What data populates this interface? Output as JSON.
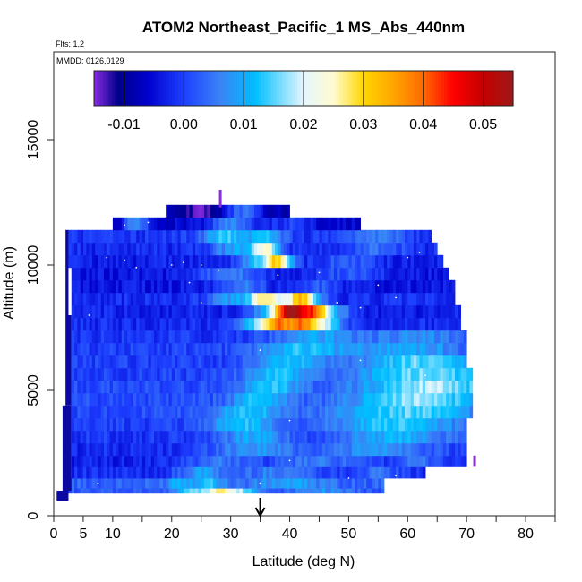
{
  "chart_data": {
    "type": "heatmap",
    "title": "ATOM2 Northeast_Pacific_1 MS_Abs_440nm",
    "flights_note": "Flts: 1,2",
    "dates_note": "MMDD: 0126,0129",
    "xlabel": "Latitude (deg N)",
    "ylabel": "Altitude (m)",
    "xlim": [
      0,
      85
    ],
    "ylim": [
      0,
      18500
    ],
    "x_ticks": [
      0,
      5,
      10,
      20,
      30,
      40,
      50,
      60,
      70,
      80
    ],
    "x_minor_ticks": [
      15,
      25,
      35,
      45,
      55,
      65,
      75,
      85
    ],
    "y_ticks": [
      0,
      5000,
      10000,
      15000
    ],
    "colorbar": {
      "range": [
        -0.015,
        0.055
      ],
      "ticks": [
        -0.01,
        0.0,
        0.01,
        0.02,
        0.03,
        0.04,
        0.05
      ],
      "tick_labels": [
        "-0.01",
        "0.00",
        "0.01",
        "0.02",
        "0.03",
        "0.04",
        "0.05"
      ],
      "stops": [
        [
          -0.015,
          "#8a2be2"
        ],
        [
          -0.011,
          "#00008b"
        ],
        [
          -0.006,
          "#0000cd"
        ],
        [
          0.0,
          "#1e40ff"
        ],
        [
          0.006,
          "#3b82f6"
        ],
        [
          0.012,
          "#00bfff"
        ],
        [
          0.02,
          "#e6f6ff"
        ],
        [
          0.025,
          "#fffbd0"
        ],
        [
          0.03,
          "#ffd700"
        ],
        [
          0.035,
          "#ffa500"
        ],
        [
          0.04,
          "#ff6a00"
        ],
        [
          0.045,
          "#ff0000"
        ],
        [
          0.05,
          "#c40000"
        ],
        [
          0.055,
          "#a01818"
        ]
      ]
    },
    "flight_marker_latitude": 35,
    "altitude_bands": [
      {
        "alt": [
          900,
          1100
        ],
        "lat": [
          2.5,
          56
        ],
        "base": 0.002,
        "features": [
          {
            "c": 23,
            "w": 2.5,
            "a": 0.012
          },
          {
            "c": 28,
            "w": 3,
            "a": 0.022
          },
          {
            "c": 32,
            "w": 3,
            "a": 0.012
          },
          {
            "c": 45,
            "w": 5,
            "a": 0.006
          }
        ]
      },
      {
        "alt": [
          1100,
          1500
        ],
        "lat": [
          2.5,
          56
        ],
        "base": 0.003,
        "features": [
          {
            "c": 21,
            "w": 2,
            "a": 0.008
          },
          {
            "c": 26,
            "w": 3,
            "a": 0.01
          },
          {
            "c": 40,
            "w": 6,
            "a": 0.006
          }
        ]
      },
      {
        "alt": [
          1500,
          1950
        ],
        "lat": [
          3,
          63
        ],
        "base": -0.002,
        "features": [
          {
            "c": 25,
            "w": 4,
            "a": 0.01
          },
          {
            "c": 38,
            "w": 8,
            "a": 0.008
          },
          {
            "c": 55,
            "w": 4,
            "a": 0.006
          }
        ]
      },
      {
        "alt": [
          1950,
          2400
        ],
        "lat": [
          3,
          70
        ],
        "base": -0.003,
        "features": [
          {
            "c": 28,
            "w": 6,
            "a": 0.008
          },
          {
            "c": 45,
            "w": 8,
            "a": 0.008
          },
          {
            "c": 62,
            "w": 5,
            "a": 0.007
          }
        ]
      },
      {
        "alt": [
          2400,
          2900
        ],
        "lat": [
          3,
          70
        ],
        "base": -0.002,
        "features": [
          {
            "c": 34,
            "w": 8,
            "a": 0.01
          },
          {
            "c": 55,
            "w": 10,
            "a": 0.01
          }
        ]
      },
      {
        "alt": [
          2900,
          3400
        ],
        "lat": [
          3,
          70
        ],
        "base": -0.001,
        "features": [
          {
            "c": 34,
            "w": 6,
            "a": 0.011
          },
          {
            "c": 58,
            "w": 10,
            "a": 0.012
          }
        ]
      },
      {
        "alt": [
          3400,
          3900
        ],
        "lat": [
          3,
          70
        ],
        "base": 0.0,
        "features": [
          {
            "c": 32,
            "w": 6,
            "a": 0.012
          },
          {
            "c": 58,
            "w": 12,
            "a": 0.013
          }
        ]
      },
      {
        "alt": [
          3900,
          4400
        ],
        "lat": [
          3,
          71
        ],
        "base": 0.001,
        "features": [
          {
            "c": 33,
            "w": 6,
            "a": 0.012
          },
          {
            "c": 60,
            "w": 12,
            "a": 0.014
          }
        ]
      },
      {
        "alt": [
          4400,
          4900
        ],
        "lat": [
          3,
          71
        ],
        "base": 0.001,
        "features": [
          {
            "c": 35,
            "w": 5,
            "a": 0.012
          },
          {
            "c": 62,
            "w": 12,
            "a": 0.016
          }
        ]
      },
      {
        "alt": [
          4900,
          5400
        ],
        "lat": [
          3,
          71
        ],
        "base": 0.001,
        "features": [
          {
            "c": 37,
            "w": 5,
            "a": 0.012
          },
          {
            "c": 64,
            "w": 12,
            "a": 0.017
          }
        ]
      },
      {
        "alt": [
          5400,
          5900
        ],
        "lat": [
          3,
          71
        ],
        "base": 0.0,
        "features": [
          {
            "c": 38,
            "w": 6,
            "a": 0.012
          },
          {
            "c": 63,
            "w": 12,
            "a": 0.016
          }
        ]
      },
      {
        "alt": [
          5900,
          6400
        ],
        "lat": [
          3,
          70
        ],
        "base": 0.0,
        "features": [
          {
            "c": 40,
            "w": 6,
            "a": 0.012
          },
          {
            "c": 62,
            "w": 10,
            "a": 0.015
          }
        ]
      },
      {
        "alt": [
          6400,
          6900
        ],
        "lat": [
          3,
          70
        ],
        "base": 0.0,
        "features": [
          {
            "c": 42,
            "w": 8,
            "a": 0.012
          },
          {
            "c": 60,
            "w": 10,
            "a": 0.01
          }
        ]
      },
      {
        "alt": [
          6900,
          7400
        ],
        "lat": [
          3,
          70
        ],
        "base": -0.001,
        "features": [
          {
            "c": 45,
            "w": 8,
            "a": 0.01
          },
          {
            "c": 62,
            "w": 8,
            "a": 0.008
          }
        ]
      },
      {
        "alt": [
          7400,
          7900
        ],
        "lat": [
          3,
          69
        ],
        "base": -0.002,
        "features": [
          {
            "c": 38,
            "w": 2.5,
            "a": 0.036
          },
          {
            "c": 42,
            "w": 2.5,
            "a": 0.036
          },
          {
            "c": 34,
            "w": 3,
            "a": 0.014
          },
          {
            "c": 46,
            "w": 3,
            "a": 0.02
          }
        ]
      },
      {
        "alt": [
          7900,
          8400
        ],
        "lat": [
          3,
          69
        ],
        "base": -0.003,
        "features": [
          {
            "c": 40,
            "w": 2.5,
            "a": 0.054
          },
          {
            "c": 44,
            "w": 2.5,
            "a": 0.04
          },
          {
            "c": 36,
            "w": 3,
            "a": 0.012
          },
          {
            "c": 48,
            "w": 3,
            "a": 0.01
          }
        ]
      },
      {
        "alt": [
          8400,
          8900
        ],
        "lat": [
          3,
          68
        ],
        "base": -0.002,
        "features": [
          {
            "c": 36,
            "w": 3,
            "a": 0.028
          },
          {
            "c": 42,
            "w": 3,
            "a": 0.034
          },
          {
            "c": 30,
            "w": 4,
            "a": 0.01
          }
        ]
      },
      {
        "alt": [
          8900,
          9400
        ],
        "lat": [
          3,
          68
        ],
        "base": -0.004,
        "features": [
          {
            "c": 32,
            "w": 4,
            "a": 0.01
          },
          {
            "c": 45,
            "w": 4,
            "a": 0.006
          }
        ]
      },
      {
        "alt": [
          9400,
          9900
        ],
        "lat": [
          3,
          67
        ],
        "base": -0.004,
        "features": [
          {
            "c": 30,
            "w": 5,
            "a": 0.01
          },
          {
            "c": 50,
            "w": 6,
            "a": 0.006
          }
        ]
      },
      {
        "alt": [
          9900,
          10400
        ],
        "lat": [
          2.5,
          66
        ],
        "base": -0.003,
        "features": [
          {
            "c": 38,
            "w": 2.5,
            "a": 0.032
          },
          {
            "c": 34,
            "w": 3,
            "a": 0.012
          },
          {
            "c": 50,
            "w": 5,
            "a": 0.006
          }
        ]
      },
      {
        "alt": [
          10400,
          10900
        ],
        "lat": [
          2.5,
          65
        ],
        "base": -0.002,
        "features": [
          {
            "c": 36,
            "w": 2.5,
            "a": 0.024
          },
          {
            "c": 31,
            "w": 4,
            "a": 0.012
          },
          {
            "c": 55,
            "w": 5,
            "a": 0.006
          }
        ]
      },
      {
        "alt": [
          10900,
          11400
        ],
        "lat": [
          2.5,
          64
        ],
        "base": -0.001,
        "features": [
          {
            "c": 29,
            "w": 4,
            "a": 0.014
          },
          {
            "c": 36,
            "w": 3,
            "a": 0.014
          },
          {
            "c": 55,
            "w": 5,
            "a": 0.006
          }
        ]
      },
      {
        "alt": [
          11400,
          11900
        ],
        "lat": [
          10,
          52
        ],
        "base": -0.006,
        "features": [
          {
            "c": 14,
            "w": 2,
            "a": 0.014
          },
          {
            "c": 30,
            "w": 4,
            "a": 0.012
          },
          {
            "c": 40,
            "w": 4,
            "a": 0.006
          }
        ]
      },
      {
        "alt": [
          11900,
          12400
        ],
        "lat": [
          19,
          40
        ],
        "base": -0.008,
        "features": [
          {
            "c": 25,
            "w": 3,
            "a": -0.006
          },
          {
            "c": 32,
            "w": 3,
            "a": 0.012
          }
        ]
      }
    ],
    "left_edge": [
      {
        "alt": [
          600,
          1000
        ],
        "lat": [
          0.5,
          2.5
        ]
      },
      {
        "alt": [
          1000,
          4400
        ],
        "lat": [
          1.5,
          3
        ]
      },
      {
        "alt": [
          4400,
          8000
        ],
        "lat": [
          2,
          3
        ]
      },
      {
        "alt": [
          8000,
          11400
        ],
        "lat": [
          2,
          2.5
        ]
      }
    ],
    "purple_marks": [
      {
        "lat": 28.2,
        "alt": [
          12300,
          13000
        ]
      },
      {
        "lat": 71.3,
        "alt": [
          1950,
          2400
        ]
      }
    ],
    "white_dots": [
      [
        7.5,
        11500
      ],
      [
        12,
        11600
      ],
      [
        16,
        11700
      ],
      [
        9,
        10300
      ],
      [
        12,
        10200
      ],
      [
        14,
        9900
      ],
      [
        20,
        10000
      ],
      [
        22,
        10100
      ],
      [
        25,
        10000
      ],
      [
        28,
        9800
      ],
      [
        45,
        9700
      ],
      [
        60,
        10300
      ],
      [
        62,
        10500
      ],
      [
        23,
        9300
      ],
      [
        38,
        9600
      ],
      [
        55,
        9200
      ],
      [
        25,
        8500
      ],
      [
        48,
        8500
      ],
      [
        52,
        8300
      ],
      [
        58,
        8700
      ],
      [
        35,
        6600
      ],
      [
        52,
        6200
      ],
      [
        6,
        8000
      ],
      [
        63,
        5600
      ],
      [
        40,
        3800
      ],
      [
        40,
        2200
      ],
      [
        7.5,
        1300
      ],
      [
        35,
        1300
      ],
      [
        50,
        1500
      ],
      [
        58,
        1600
      ],
      [
        12,
        700
      ],
      [
        17,
        700
      ],
      [
        35,
        800
      ],
      [
        52,
        800
      ]
    ]
  }
}
